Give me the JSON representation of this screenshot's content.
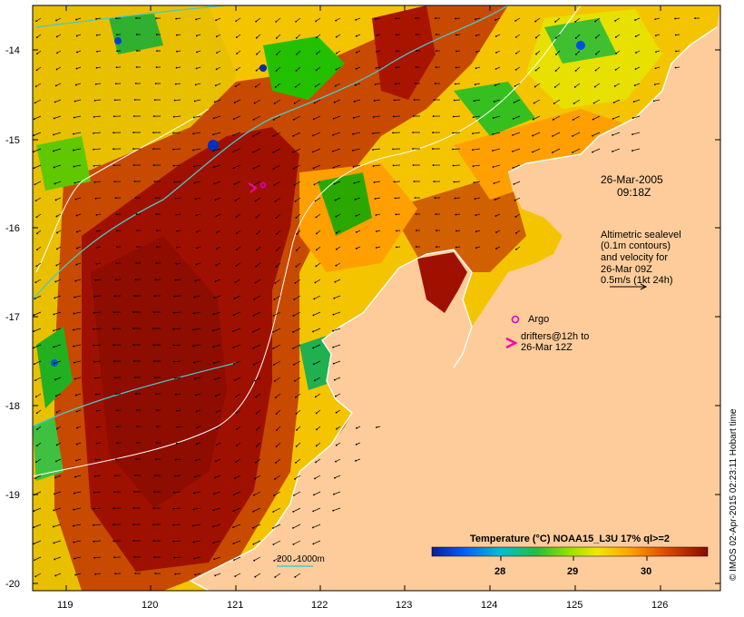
{
  "map": {
    "date": "26-Mar-2005",
    "time": "09:18Z",
    "altimetry_lines": [
      "Altimetric sealevel",
      "(0.1m contours)",
      "and velocity for",
      "26-Mar 09Z",
      "0.5m/s (1kt 24h)"
    ],
    "argo_label": "Argo",
    "drifter_lines": [
      "drifters@12h to",
      "26-Mar 12Z"
    ],
    "bathymetry_legend": "200  1000m",
    "colorbar_title": "Temperature (°C) NOAA15_L3U 17% ql>=2",
    "colorbar_ticks": [
      "28",
      "29",
      "30"
    ],
    "credit": "© IMOS 02-Apr-2015 02:23:11 Hobart time",
    "lat_ticks": [
      "-14",
      "-15",
      "-16",
      "-17",
      "-18",
      "-19",
      "-20"
    ],
    "lon_ticks": [
      "119",
      "120",
      "121",
      "122",
      "123",
      "124",
      "125",
      "126"
    ],
    "colors": {
      "land": "#fdcc9a",
      "sst_hot": "#a01000",
      "sst_warm": "#c84a00",
      "sst_mid": "#ff9900",
      "sst_yellow": "#f2e000",
      "sst_green": "#22c000",
      "sst_cool": "#00a0a0",
      "contour_200": "#49c9c9",
      "contour_1000": "#ffffff",
      "argo": "#dd00dd",
      "drifter": "#ff00aa"
    }
  }
}
